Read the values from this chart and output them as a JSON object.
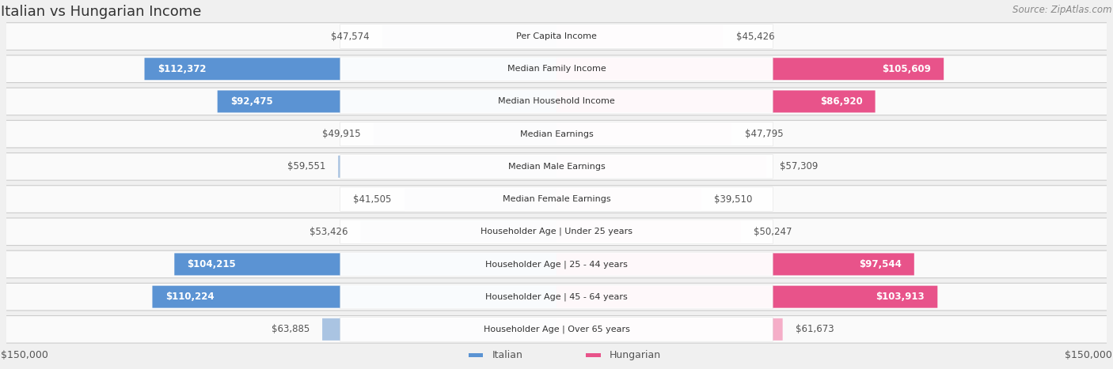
{
  "title": "Italian vs Hungarian Income",
  "source": "Source: ZipAtlas.com",
  "categories": [
    "Per Capita Income",
    "Median Family Income",
    "Median Household Income",
    "Median Earnings",
    "Median Male Earnings",
    "Median Female Earnings",
    "Householder Age | Under 25 years",
    "Householder Age | 25 - 44 years",
    "Householder Age | 45 - 64 years",
    "Householder Age | Over 65 years"
  ],
  "italian_values": [
    47574,
    112372,
    92475,
    49915,
    59551,
    41505,
    53426,
    104215,
    110224,
    63885
  ],
  "hungarian_values": [
    45426,
    105609,
    86920,
    47795,
    57309,
    39510,
    50247,
    97544,
    103913,
    61673
  ],
  "italian_labels": [
    "$47,574",
    "$112,372",
    "$92,475",
    "$49,915",
    "$59,551",
    "$41,505",
    "$53,426",
    "$104,215",
    "$110,224",
    "$63,885"
  ],
  "hungarian_labels": [
    "$45,426",
    "$105,609",
    "$86,920",
    "$47,795",
    "$57,309",
    "$39,510",
    "$50,247",
    "$97,544",
    "$103,913",
    "$61,673"
  ],
  "italian_color_light": "#aac4e2",
  "italian_color_dark": "#5b93d3",
  "hungarian_color_light": "#f5aec8",
  "hungarian_color_dark": "#e8538a",
  "dark_threshold": 70000,
  "max_value": 150000,
  "background_color": "#f0f0f0",
  "row_bg_color": "#fafafa",
  "title_fontsize": 13,
  "source_fontsize": 8.5,
  "value_fontsize": 8.5,
  "category_fontsize": 8.0,
  "axis_label_fontsize": 9
}
